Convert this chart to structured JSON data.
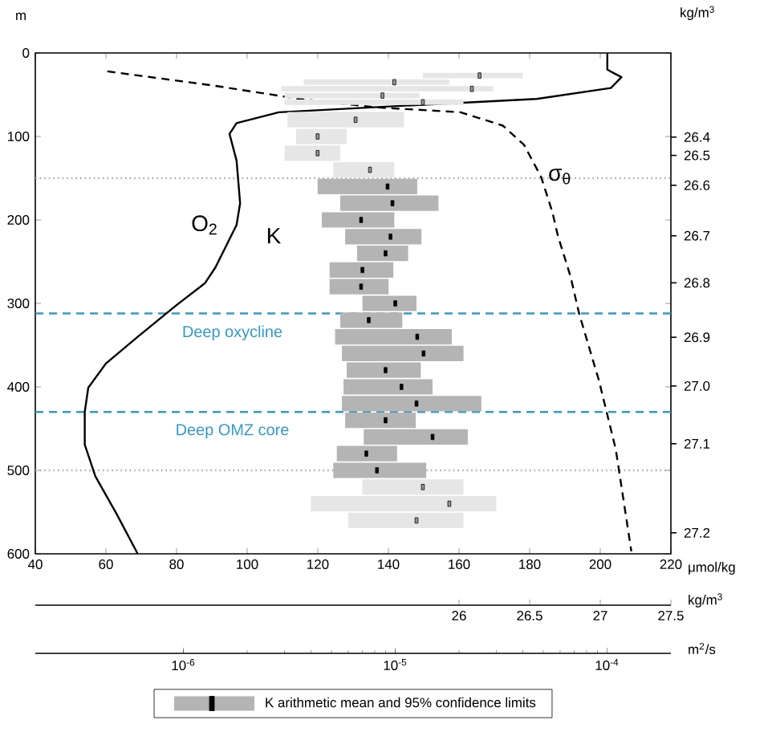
{
  "chart_data": [
    {
      "type": "line",
      "xlabel": "μmol/kg",
      "ylabel": "m",
      "y2label": "kg/m$^{3}$",
      "x2label": "kg/m$^{3}$",
      "xlim": [
        40,
        220
      ],
      "xticks": [
        40,
        60,
        80,
        100,
        120,
        140,
        160,
        180,
        200,
        220
      ],
      "ylim": [
        600,
        0
      ],
      "yticks": [
        0,
        100,
        200,
        300,
        400,
        500,
        600
      ],
      "x2lim": [
        23,
        27.5
      ],
      "x2ticks": [
        26,
        26.5,
        27,
        27.5
      ],
      "series": [
        {
          "name": "O$_{2}$",
          "color": "#000000",
          "line_style": "solid",
          "x": [
            202,
            202,
            206,
            203,
            182,
            136,
            109,
            97,
            95,
            97,
            98,
            97,
            91,
            88,
            80,
            69,
            60,
            55,
            54,
            54,
            57,
            63,
            69
          ],
          "values": [
            0,
            20,
            29,
            42,
            55,
            65,
            71,
            84,
            97,
            129,
            180,
            206,
            257,
            276,
            302,
            340,
            372,
            401,
            430,
            469,
            507,
            552,
            600
          ]
        },
        {
          "name": "σ$_{θ}$",
          "color": "#000000",
          "line_style": "dashed",
          "axis": "x2",
          "x": [
            23.51,
            24.26,
            24.87,
            25.4,
            26.01,
            26.31,
            26.46,
            26.58,
            26.66,
            26.7,
            26.79,
            26.85,
            26.99,
            27.11,
            27.22
          ],
          "values": [
            22,
            39,
            55,
            65,
            71,
            87,
            110,
            148,
            190,
            219,
            268,
            312,
            392,
            475,
            597
          ]
        }
      ],
      "ref_lines": [
        {
          "axis": "y",
          "value": 150,
          "color": "#aaaaaa",
          "line_style": "dotted"
        },
        {
          "axis": "y",
          "value": 312,
          "label": "Deep oxycline",
          "color": "#3399c8",
          "line_style": "dashed"
        },
        {
          "axis": "y",
          "value": 430,
          "label": "Deep OMZ core",
          "color": "#3399c8",
          "line_style": "dashed"
        },
        {
          "axis": "y",
          "value": 500,
          "color": "#aaaaaa",
          "line_style": "dotted"
        }
      ],
      "annotations": [
        "26.4",
        "26.5",
        "26.6",
        "26.7",
        "26.8",
        "26.9",
        "27.0",
        "27.1",
        "27.2"
      ]
    },
    {
      "type": "scatter",
      "xlabel": "m$^{2}$/s",
      "log": "x",
      "xlim": [
        2e-07,
        0.0002
      ],
      "xticks": [
        {
          "value": 1e-06,
          "label": "10$^{-6}$"
        },
        {
          "value": 1e-05,
          "label": "10$^{-5}$"
        },
        {
          "value": 0.0001,
          "label": "10$^{-4}$"
        }
      ],
      "ylim": [
        600,
        0
      ],
      "tick_labels": "x",
      "legend": "bottom",
      "marker": "square",
      "annotations": [
        "K"
      ],
      "series": [
        {
          "name": "K arithmetic mean and 95% confidence limits",
          "color": "#000000",
          "x": [
            2.5e-05,
            9.9e-06,
            2.3e-05,
            8.7e-06,
            1.35e-05,
            6.5e-06,
            4.3e-06,
            4.3e-06,
            7.6e-06,
            9.2e-06,
            9.7e-06,
            6.9e-06,
            9.5e-06,
            9e-06,
            7e-06,
            6.9e-06,
            1e-05,
            7.5e-06,
            1.27e-05,
            1.36e-05,
            9e-06,
            1.07e-05,
            1.26e-05,
            9e-06,
            1.5e-05,
            7.3e-06,
            8.2e-06,
            1.35e-05,
            1.8e-05,
            1.26e-05
          ],
          "values": [
            27,
            35,
            43,
            51,
            59,
            80,
            100,
            120,
            140,
            160,
            180,
            200,
            220,
            240,
            260,
            280,
            300,
            320,
            340,
            360,
            380,
            400,
            420,
            440,
            460,
            480,
            500,
            520,
            540,
            560
          ],
          "xerrors": [
            [
              1.35e-05,
              4e-05
            ],
            [
              3.7e-06,
              1.8e-05
            ],
            [
              2.9e-06,
              2.9e-05
            ],
            [
              3e-06,
              1.3e-05
            ],
            [
              3e-06,
              2.1e-05
            ],
            [
              3.1e-06,
              1.1e-05
            ],
            [
              3.4e-06,
              5.9e-06
            ],
            [
              3e-06,
              5.5e-06
            ],
            [
              5.1e-06,
              9.9e-06
            ],
            [
              4.3e-06,
              1.27e-05
            ],
            [
              5.5e-06,
              1.6e-05
            ],
            [
              4.5e-06,
              9.9e-06
            ],
            [
              5.8e-06,
              1.33e-05
            ],
            [
              6.6e-06,
              1.15e-05
            ],
            [
              4.9e-06,
              9.8e-06
            ],
            [
              4.9e-06,
              9.3e-06
            ],
            [
              7e-06,
              1.26e-05
            ],
            [
              5.5e-06,
              1.08e-05
            ],
            [
              5.2e-06,
              1.85e-05
            ],
            [
              5.6e-06,
              2.1e-05
            ],
            [
              5.9e-06,
              1.32e-05
            ],
            [
              5.7e-06,
              1.5e-05
            ],
            [
              5.6e-06,
              2.55e-05
            ],
            [
              5.8e-06,
              1.25e-05
            ],
            [
              7.1e-06,
              2.2e-05
            ],
            [
              5.3e-06,
              1.02e-05
            ],
            [
              5.1e-06,
              1.4e-05
            ],
            [
              7e-06,
              2.1e-05
            ],
            [
              4e-06,
              3e-05
            ],
            [
              6e-06,
              2.1e-05
            ]
          ],
          "colors": [
            "#969696",
            "#969696",
            "#969696",
            "#969696",
            "#969696",
            "#969696",
            "#969696",
            "#969696",
            "#969696",
            "#000000",
            "#000000",
            "#000000",
            "#000000",
            "#000000",
            "#000000",
            "#000000",
            "#000000",
            "#000000",
            "#000000",
            "#000000",
            "#000000",
            "#000000",
            "#000000",
            "#000000",
            "#000000",
            "#000000",
            "#000000",
            "#969696",
            "#969696",
            "#969696"
          ]
        }
      ]
    }
  ]
}
